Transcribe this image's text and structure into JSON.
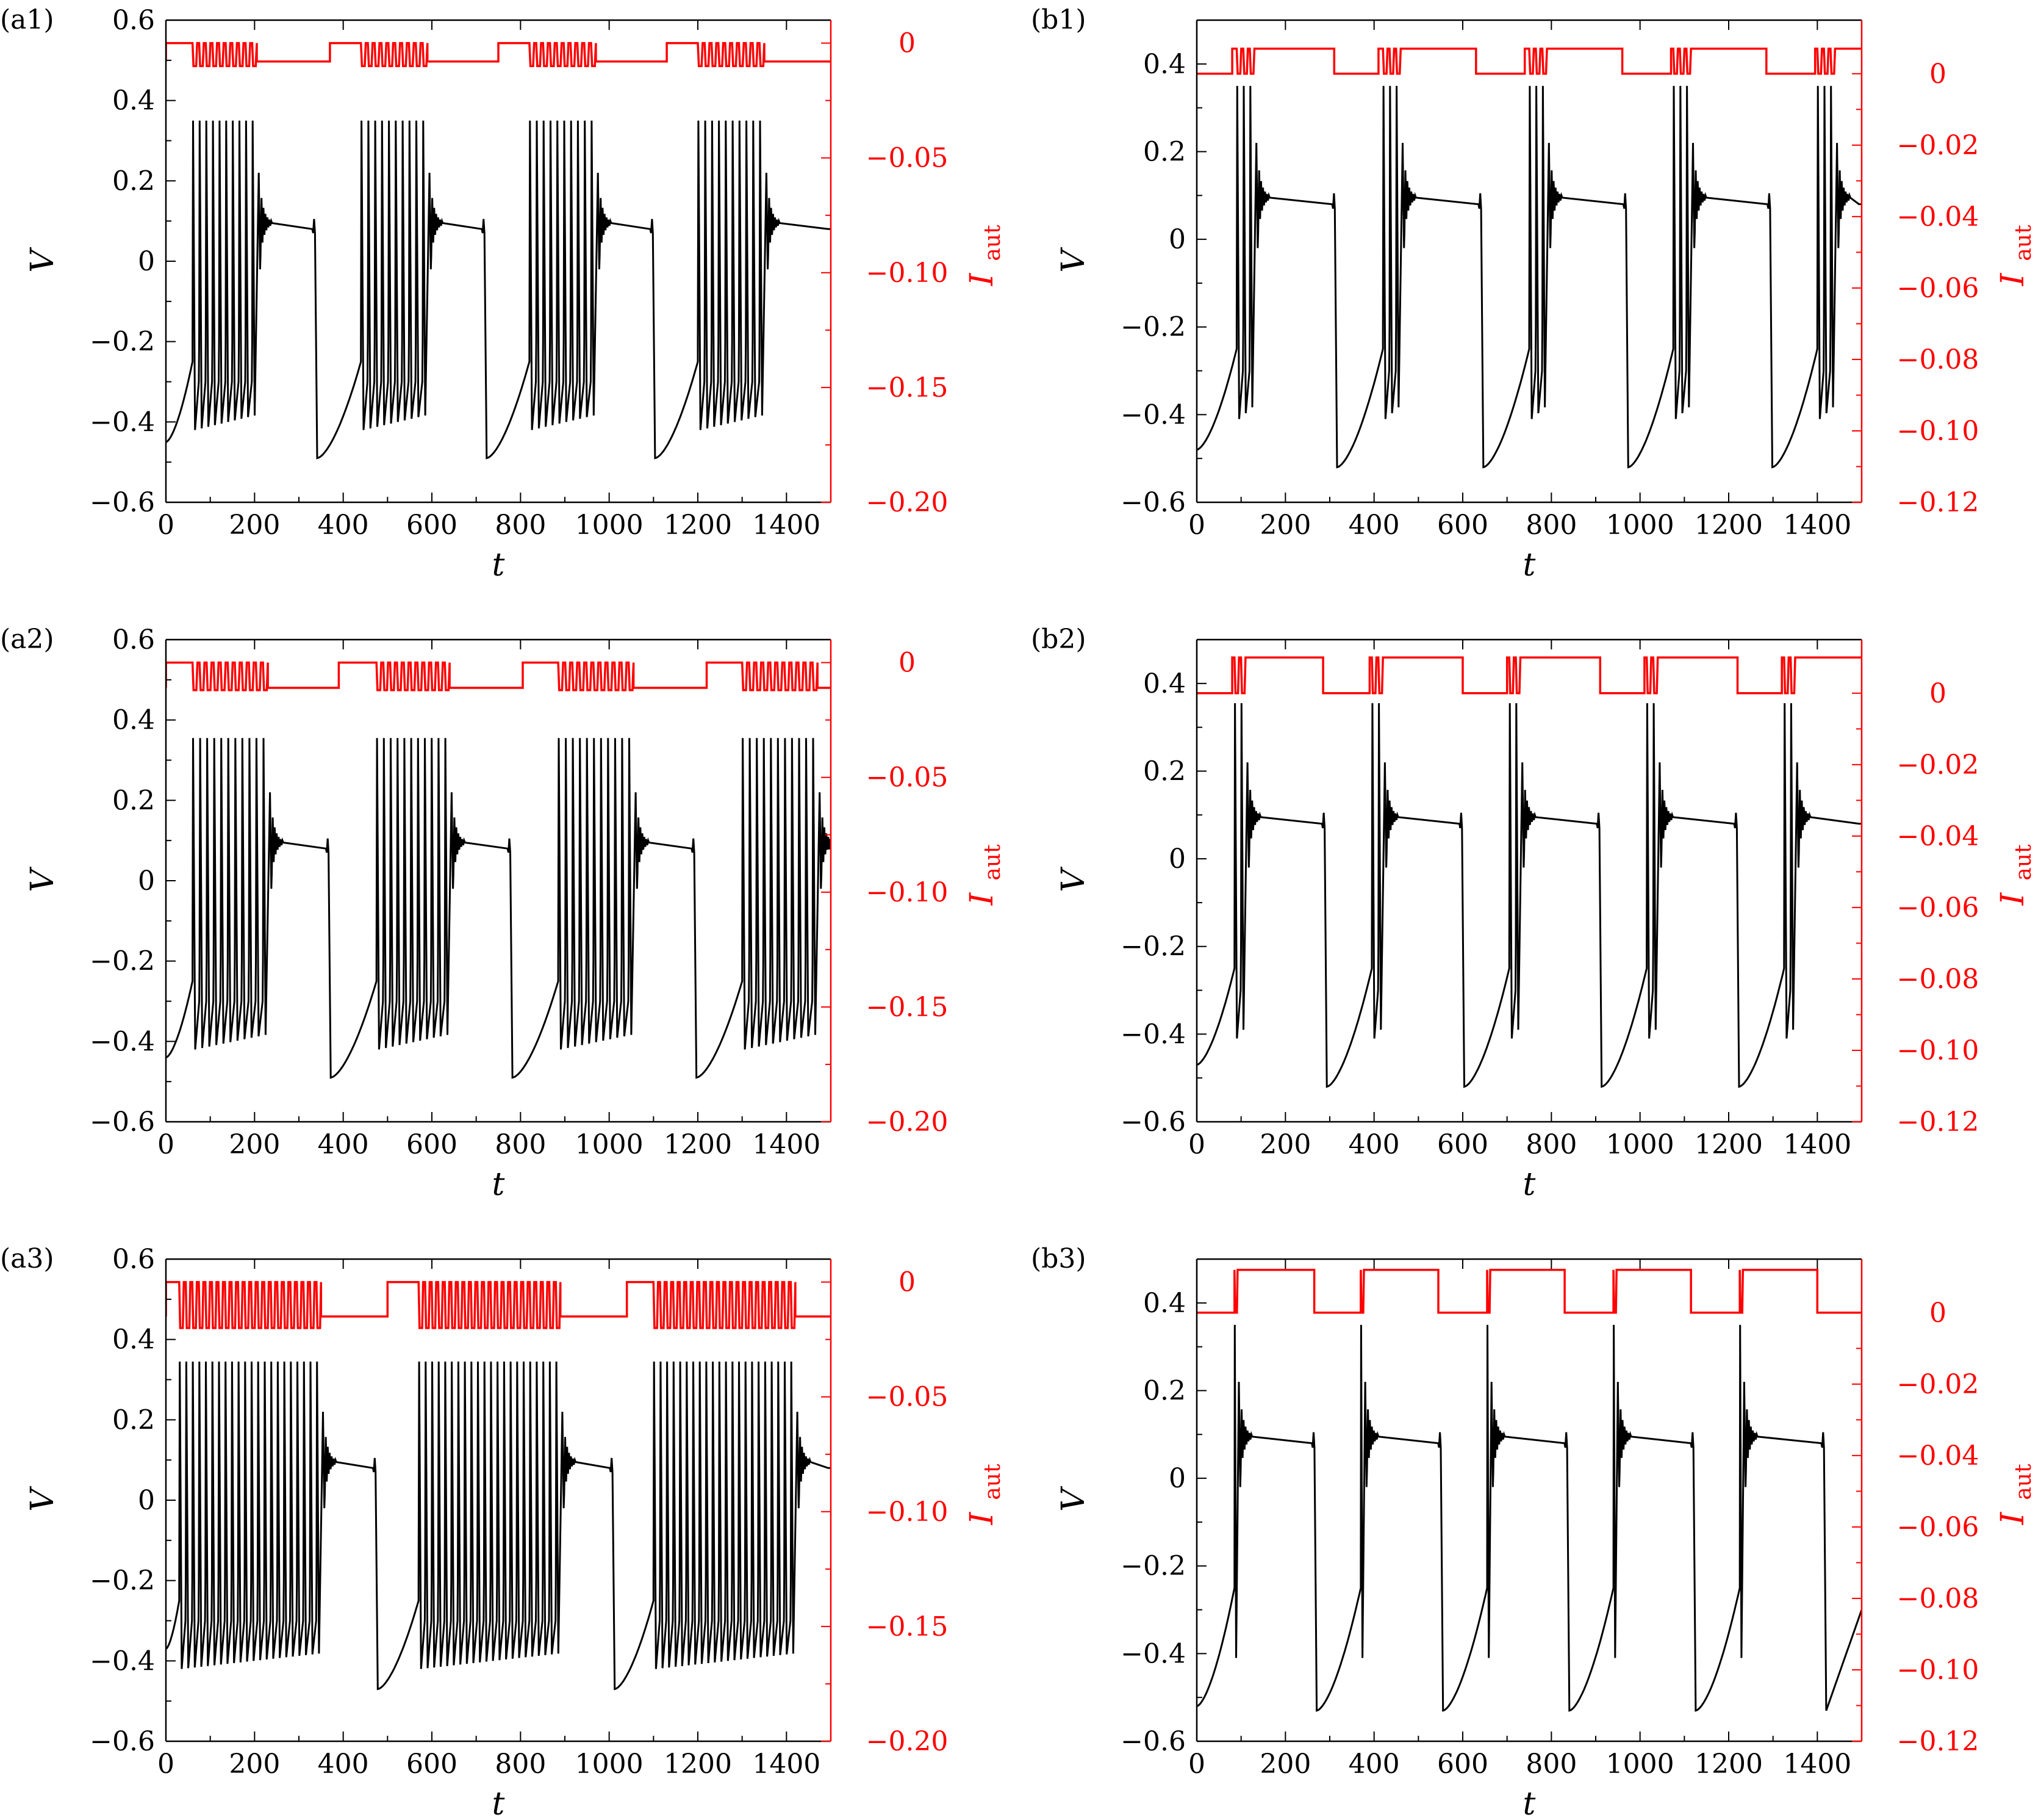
{
  "chart_data": [
    {
      "type": "line",
      "label": "(a1)",
      "title": "",
      "xlabel": "t",
      "ylabel": "V",
      "y2label_main": "I",
      "y2label_sub": "aut",
      "xlim": [
        0,
        1500
      ],
      "ylim": [
        -0.6,
        0.6
      ],
      "y2lim": [
        -0.2,
        0.01
      ],
      "x_ticks": [
        0,
        200,
        400,
        600,
        800,
        1000,
        1200,
        1400
      ],
      "x_tick_labels": [
        "0",
        "200",
        "400",
        "600",
        "800",
        "1000",
        "1200",
        "1400"
      ],
      "y_ticks": [
        -0.6,
        -0.4,
        -0.2,
        0,
        0.2,
        0.4,
        0.6
      ],
      "y_tick_labels": [
        "−0.6",
        "−0.4",
        "−0.2",
        "0",
        "0.2",
        "0.4",
        "0.6"
      ],
      "y2_ticks": [
        -0.2,
        -0.15,
        -0.1,
        -0.05,
        0
      ],
      "y2_tick_labels": [
        "−0.20",
        "−0.15",
        "−0.10",
        "−0.05",
        "0"
      ],
      "series": [
        {
          "name": "V",
          "color": "#000000",
          "axis": "left",
          "shape": "burst",
          "start": -0.45,
          "spike_peak": 0.35,
          "spike_trough": -0.42,
          "plateau_start": 0.095,
          "plateau_end": 0.08,
          "reset_min": -0.49,
          "bursts": [
            [
              60,
              205
            ],
            [
              440,
              590
            ],
            [
              820,
              970
            ],
            [
              1200,
              1350
            ]
          ],
          "spikes_per_burst": 10
        },
        {
          "name": "I_aut",
          "color": "#ff0000",
          "axis": "right",
          "high": 0.0,
          "low": -0.008,
          "burst_min": -0.01,
          "high_intervals": [
            [
              0,
              205
            ],
            [
              370,
              590
            ],
            [
              750,
              970
            ],
            [
              1130,
              1350
            ]
          ]
        }
      ]
    },
    {
      "type": "line",
      "label": "(a2)",
      "title": "",
      "xlabel": "t",
      "ylabel": "V",
      "y2label_main": "I",
      "y2label_sub": "aut",
      "xlim": [
        0,
        1500
      ],
      "ylim": [
        -0.6,
        0.6
      ],
      "y2lim": [
        -0.2,
        0.01
      ],
      "x_ticks": [
        0,
        200,
        400,
        600,
        800,
        1000,
        1200,
        1400
      ],
      "x_tick_labels": [
        "0",
        "200",
        "400",
        "600",
        "800",
        "1000",
        "1200",
        "1400"
      ],
      "y_ticks": [
        -0.6,
        -0.4,
        -0.2,
        0,
        0.2,
        0.4,
        0.6
      ],
      "y_tick_labels": [
        "−0.6",
        "−0.4",
        "−0.2",
        "0",
        "0.2",
        "0.4",
        "0.6"
      ],
      "y2_ticks": [
        -0.2,
        -0.15,
        -0.1,
        -0.05,
        0
      ],
      "y2_tick_labels": [
        "−0.20",
        "−0.15",
        "−0.10",
        "−0.05",
        "0"
      ],
      "series": [
        {
          "name": "V",
          "color": "#000000",
          "axis": "left",
          "shape": "burst",
          "start": -0.44,
          "spike_peak": 0.355,
          "spike_trough": -0.42,
          "plateau_start": 0.095,
          "plateau_end": 0.08,
          "reset_min": -0.49,
          "bursts": [
            [
              60,
              230
            ],
            [
              475,
              640
            ],
            [
              885,
              1055
            ],
            [
              1300,
              1470
            ]
          ],
          "spikes_per_burst": 11
        },
        {
          "name": "I_aut",
          "color": "#ff0000",
          "axis": "right",
          "high": 0.0,
          "low": -0.011,
          "burst_min": -0.012,
          "high_intervals": [
            [
              0,
              230
            ],
            [
              390,
              640
            ],
            [
              805,
              1055
            ],
            [
              1220,
              1470
            ]
          ]
        }
      ]
    },
    {
      "type": "line",
      "label": "(a3)",
      "title": "",
      "xlabel": "t",
      "ylabel": "V",
      "y2label_main": "I",
      "y2label_sub": "aut",
      "xlim": [
        0,
        1500
      ],
      "ylim": [
        -0.6,
        0.6
      ],
      "y2lim": [
        -0.2,
        0.01
      ],
      "x_ticks": [
        0,
        200,
        400,
        600,
        800,
        1000,
        1200,
        1400
      ],
      "x_tick_labels": [
        "0",
        "200",
        "400",
        "600",
        "800",
        "1000",
        "1200",
        "1400"
      ],
      "y_ticks": [
        -0.6,
        -0.4,
        -0.2,
        0,
        0.2,
        0.4,
        0.6
      ],
      "y_tick_labels": [
        "−0.6",
        "−0.4",
        "−0.2",
        "0",
        "0.2",
        "0.4",
        "0.6"
      ],
      "y2_ticks": [
        -0.2,
        -0.15,
        -0.1,
        -0.05,
        0
      ],
      "y2_tick_labels": [
        "−0.20",
        "−0.15",
        "−0.10",
        "−0.05",
        "0"
      ],
      "series": [
        {
          "name": "V",
          "color": "#000000",
          "axis": "left",
          "shape": "burst",
          "start": -0.37,
          "spike_peak": 0.345,
          "spike_trough": -0.42,
          "plateau_start": 0.095,
          "plateau_end": 0.08,
          "reset_min": -0.47,
          "bursts": [
            [
              30,
              350
            ],
            [
              570,
              890
            ],
            [
              1100,
              1420
            ]
          ],
          "spikes_per_burst": 22
        },
        {
          "name": "I_aut",
          "color": "#ff0000",
          "axis": "right",
          "high": 0.0,
          "low": -0.015,
          "burst_min": -0.02,
          "high_intervals": [
            [
              0,
              350
            ],
            [
              500,
              890
            ],
            [
              1040,
              1420
            ]
          ]
        }
      ]
    },
    {
      "type": "line",
      "label": "(b1)",
      "title": "",
      "xlabel": "t",
      "ylabel": "V",
      "y2label_main": "I",
      "y2label_sub": "aut",
      "xlim": [
        0,
        1500
      ],
      "ylim": [
        -0.6,
        0.5
      ],
      "y2lim": [
        -0.12,
        0.015
      ],
      "x_ticks": [
        0,
        200,
        400,
        600,
        800,
        1000,
        1200,
        1400
      ],
      "x_tick_labels": [
        "0",
        "200",
        "400",
        "600",
        "800",
        "1000",
        "1200",
        "1400"
      ],
      "y_ticks": [
        -0.6,
        -0.4,
        -0.2,
        0,
        0.2,
        0.4
      ],
      "y_tick_labels": [
        "−0.6",
        "−0.4",
        "−0.2",
        "0",
        "0.2",
        "0.4"
      ],
      "y2_ticks": [
        -0.12,
        -0.1,
        -0.08,
        -0.06,
        -0.04,
        -0.02,
        0
      ],
      "y2_tick_labels": [
        "−0.12",
        "−0.10",
        "−0.08",
        "−0.06",
        "−0.04",
        "−0.02",
        "0"
      ],
      "series": [
        {
          "name": "V",
          "color": "#000000",
          "axis": "left",
          "shape": "burst",
          "start": -0.48,
          "spike_peak": 0.35,
          "spike_trough": -0.41,
          "plateau_start": 0.095,
          "plateau_end": 0.08,
          "reset_min": -0.52,
          "bursts": [
            [
              90,
              130
            ],
            [
              420,
              460
            ],
            [
              750,
              790
            ],
            [
              1075,
              1115
            ],
            [
              1400,
              1440
            ]
          ],
          "spikes_per_burst": 3
        },
        {
          "name": "I_aut",
          "color": "#ff0000",
          "axis": "right",
          "high": 0.007,
          "low": 0.0,
          "burst_min": 0.0,
          "high_intervals": [
            [
              80,
              310
            ],
            [
              410,
              630
            ],
            [
              740,
              960
            ],
            [
              1070,
              1285
            ],
            [
              1395,
              1500
            ]
          ]
        }
      ]
    },
    {
      "type": "line",
      "label": "(b2)",
      "title": "",
      "xlabel": "t",
      "ylabel": "V",
      "y2label_main": "I",
      "y2label_sub": "aut",
      "xlim": [
        0,
        1500
      ],
      "ylim": [
        -0.6,
        0.5
      ],
      "y2lim": [
        -0.12,
        0.015
      ],
      "x_ticks": [
        0,
        200,
        400,
        600,
        800,
        1000,
        1200,
        1400
      ],
      "x_tick_labels": [
        "0",
        "200",
        "400",
        "600",
        "800",
        "1000",
        "1200",
        "1400"
      ],
      "y_ticks": [
        -0.6,
        -0.4,
        -0.2,
        0,
        0.2,
        0.4
      ],
      "y_tick_labels": [
        "−0.6",
        "−0.4",
        "−0.2",
        "0",
        "0.2",
        "0.4"
      ],
      "y2_ticks": [
        -0.12,
        -0.1,
        -0.08,
        -0.06,
        -0.04,
        -0.02,
        0
      ],
      "y2_tick_labels": [
        "−0.12",
        "−0.10",
        "−0.08",
        "−0.06",
        "−0.04",
        "−0.02",
        "0"
      ],
      "series": [
        {
          "name": "V",
          "color": "#000000",
          "axis": "left",
          "shape": "burst",
          "start": -0.47,
          "spike_peak": 0.355,
          "spike_trough": -0.41,
          "plateau_start": 0.095,
          "plateau_end": 0.08,
          "reset_min": -0.52,
          "bursts": [
            [
              85,
              110
            ],
            [
              395,
              420
            ],
            [
              705,
              730
            ],
            [
              1015,
              1040
            ],
            [
              1325,
              1350
            ]
          ],
          "spikes_per_burst": 2
        },
        {
          "name": "I_aut",
          "color": "#ff0000",
          "axis": "right",
          "high": 0.01,
          "low": 0.0,
          "burst_min": 0.0,
          "high_intervals": [
            [
              80,
              285
            ],
            [
              390,
              600
            ],
            [
              700,
              910
            ],
            [
              1010,
              1220
            ],
            [
              1320,
              1500
            ]
          ]
        }
      ]
    },
    {
      "type": "line",
      "label": "(b3)",
      "title": "",
      "xlabel": "t",
      "ylabel": "V",
      "y2label_main": "I",
      "y2label_sub": "aut",
      "xlim": [
        0,
        1500
      ],
      "ylim": [
        -0.6,
        0.5
      ],
      "y2lim": [
        -0.12,
        0.015
      ],
      "x_ticks": [
        0,
        200,
        400,
        600,
        800,
        1000,
        1200,
        1400
      ],
      "x_tick_labels": [
        "0",
        "200",
        "400",
        "600",
        "800",
        "1000",
        "1200",
        "1400"
      ],
      "y_ticks": [
        -0.6,
        -0.4,
        -0.2,
        0,
        0.2,
        0.4
      ],
      "y_tick_labels": [
        "−0.6",
        "−0.4",
        "−0.2",
        "0",
        "0.2",
        "0.4"
      ],
      "y2_ticks": [
        -0.12,
        -0.1,
        -0.08,
        -0.06,
        -0.04,
        -0.02,
        0
      ],
      "y2_tick_labels": [
        "−0.12",
        "−0.10",
        "−0.08",
        "−0.06",
        "−0.04",
        "−0.02",
        "0"
      ],
      "series": [
        {
          "name": "V",
          "color": "#000000",
          "axis": "left",
          "shape": "burst",
          "start": -0.52,
          "spike_peak": 0.35,
          "spike_trough": -0.41,
          "plateau_start": 0.095,
          "plateau_end": 0.08,
          "reset_min": -0.53,
          "bursts": [
            [
              85,
              95
            ],
            [
              370,
              380
            ],
            [
              655,
              665
            ],
            [
              940,
              950
            ],
            [
              1225,
              1235
            ]
          ],
          "spikes_per_burst": 1
        },
        {
          "name": "I_aut",
          "color": "#ff0000",
          "axis": "right",
          "high": 0.012,
          "low": 0.0,
          "burst_min": 0.0,
          "high_intervals": [
            [
              85,
              265
            ],
            [
              370,
              545
            ],
            [
              655,
              830
            ],
            [
              940,
              1115
            ],
            [
              1225,
              1400
            ]
          ]
        }
      ]
    }
  ]
}
